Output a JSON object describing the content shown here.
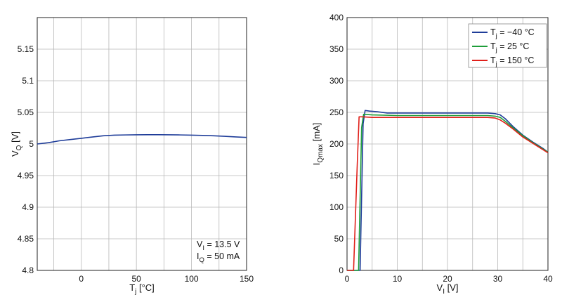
{
  "chart_data": [
    {
      "type": "line",
      "xlabel": "T",
      "xlabel_sub": "j",
      "xlabel_unit": " [°C]",
      "ylabel": "V",
      "ylabel_sub": "Q",
      "ylabel_unit": " [V]",
      "xlim": [
        -40,
        150
      ],
      "ylim": [
        4.8,
        5.2
      ],
      "x_ticks": [
        0,
        50,
        100,
        150
      ],
      "x_tick_labels": [
        "0",
        "50",
        "100",
        "150"
      ],
      "y_ticks": [
        4.8,
        4.85,
        4.9,
        4.95,
        5.0,
        5.05,
        5.1,
        5.15
      ],
      "y_tick_labels": [
        "4.8",
        "4.85",
        "4.9",
        "4.95",
        "5",
        "5.05",
        "5.1",
        "5.15"
      ],
      "x_grid": [
        -25,
        0,
        25,
        50,
        75,
        100,
        125,
        150
      ],
      "y_grid": [
        4.8,
        4.85,
        4.9,
        4.95,
        5.0,
        5.05,
        5.1,
        5.15,
        5.2
      ],
      "grid": true,
      "color": "#1f3d99",
      "annotation": {
        "lines": [
          {
            "main": "V",
            "sub": "I",
            "rest": " = 13.5 V"
          },
          {
            "main": "I",
            "sub": "Q",
            "rest": " = 50 mA"
          }
        ]
      },
      "series": [
        {
          "x": [
            -40,
            -30,
            -20,
            -10,
            0,
            10,
            20,
            30,
            40,
            50,
            60,
            70,
            80,
            90,
            100,
            110,
            120,
            130,
            140,
            150
          ],
          "values": [
            5.0,
            5.002,
            5.005,
            5.007,
            5.009,
            5.011,
            5.013,
            5.014,
            5.0143,
            5.0145,
            5.0146,
            5.0146,
            5.0145,
            5.0143,
            5.014,
            5.0135,
            5.013,
            5.0122,
            5.0112,
            5.0103
          ]
        }
      ]
    },
    {
      "type": "line",
      "xlabel": "V",
      "xlabel_sub": "I",
      "xlabel_unit": " [V]",
      "ylabel": "I",
      "ylabel_sub": "Qmax",
      "ylabel_unit": " [mA]",
      "xlim": [
        0,
        40
      ],
      "ylim": [
        0,
        400
      ],
      "x_ticks": [
        0,
        10,
        20,
        30,
        40
      ],
      "x_tick_labels": [
        "0",
        "10",
        "20",
        "30",
        "40"
      ],
      "y_ticks": [
        0,
        50,
        100,
        150,
        200,
        250,
        300,
        350,
        400
      ],
      "y_tick_labels": [
        "0",
        "50",
        "100",
        "150",
        "200",
        "250",
        "300",
        "350",
        "400"
      ],
      "x_grid": [
        5,
        10,
        15,
        20,
        25,
        30,
        35
      ],
      "y_grid": [
        50,
        100,
        150,
        200,
        250,
        300,
        350
      ],
      "grid": true,
      "legend": "top-right",
      "series": [
        {
          "label_main": "T",
          "label_sub": "j",
          "label_rest": " = −40 °C",
          "color": "#1f3d99",
          "x": [
            0,
            2.6,
            3.2,
            3.6,
            4.5,
            6,
            8,
            10,
            15,
            20,
            25,
            28,
            29.5,
            30.5,
            31.5,
            33,
            35,
            37,
            39,
            40
          ],
          "values": [
            0,
            0,
            232,
            253,
            252,
            251,
            249,
            249,
            249,
            249,
            249,
            249,
            248,
            246,
            240,
            228,
            214,
            203,
            193,
            187
          ]
        },
        {
          "label_main": "T",
          "label_sub": "j",
          "label_rest": " = 25 °C",
          "color": "#1e9e3a",
          "x": [
            0,
            2.3,
            2.9,
            3.3,
            5,
            10,
            15,
            20,
            25,
            28,
            29.5,
            30.5,
            31.5,
            33,
            35,
            37,
            39,
            40
          ],
          "values": [
            0,
            0,
            226,
            247,
            246,
            245,
            245,
            245,
            245,
            245,
            244,
            242,
            236,
            226,
            213,
            202,
            192,
            187
          ]
        },
        {
          "label_main": "T",
          "label_sub": "j",
          "label_rest": " = 150 °C",
          "color": "#e0201a",
          "x": [
            0,
            1.3,
            2.0,
            2.4,
            3,
            5,
            10,
            15,
            20,
            25,
            28,
            29.5,
            30.5,
            31.5,
            33,
            35,
            37,
            39,
            40
          ],
          "values": [
            0,
            0,
            160,
            243,
            243,
            242,
            242,
            242,
            242,
            242,
            242,
            241,
            238,
            233,
            224,
            211,
            201,
            191,
            186
          ]
        }
      ]
    }
  ]
}
